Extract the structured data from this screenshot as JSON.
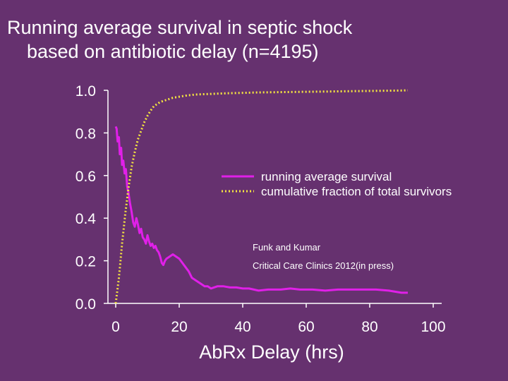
{
  "title_line1": "Running average survival in septic shock",
  "title_line2": "based on antibiotic delay (n=4195)",
  "colors": {
    "background": "#66316f",
    "survival": "#e020e8",
    "cumulative": "#f4e440",
    "axis": "#ffffff"
  },
  "chart_data": {
    "type": "line",
    "title": "Running average survival in septic shock based on antibiotic delay (n=4195)",
    "xlabel": "AbRx Delay (hrs)",
    "ylabel": "",
    "xlim": [
      0,
      100
    ],
    "ylim": [
      0,
      1.0
    ],
    "x_ticks": [
      "0",
      "20",
      "40",
      "60",
      "80",
      "100"
    ],
    "y_ticks": [
      "0.0",
      "0.2",
      "0.4",
      "0.6",
      "0.8",
      "1.0"
    ],
    "legend_position": "center-right",
    "grid": false,
    "annotation": [
      "Funk and Kumar",
      "Critical Care Clinics 2012(in press)"
    ],
    "series": [
      {
        "name": "running average survival",
        "style": "solid",
        "color": "#e020e8",
        "points": [
          [
            0.0,
            0.83
          ],
          [
            0.3,
            0.82
          ],
          [
            0.6,
            0.76
          ],
          [
            1.0,
            0.78
          ],
          [
            1.3,
            0.7
          ],
          [
            1.7,
            0.73
          ],
          [
            2.0,
            0.65
          ],
          [
            2.4,
            0.67
          ],
          [
            2.8,
            0.61
          ],
          [
            3.2,
            0.63
          ],
          [
            3.6,
            0.55
          ],
          [
            4.0,
            0.52
          ],
          [
            4.5,
            0.47
          ],
          [
            5.0,
            0.43
          ],
          [
            5.5,
            0.38
          ],
          [
            6.0,
            0.36
          ],
          [
            6.5,
            0.4
          ],
          [
            7.0,
            0.37
          ],
          [
            7.5,
            0.33
          ],
          [
            8.0,
            0.35
          ],
          [
            8.5,
            0.31
          ],
          [
            9.0,
            0.3
          ],
          [
            9.5,
            0.28
          ],
          [
            10.0,
            0.32
          ],
          [
            10.5,
            0.29
          ],
          [
            11.0,
            0.27
          ],
          [
            11.5,
            0.28
          ],
          [
            12.0,
            0.26
          ],
          [
            12.5,
            0.27
          ],
          [
            13.0,
            0.25
          ],
          [
            13.5,
            0.24
          ],
          [
            14.0,
            0.22
          ],
          [
            14.5,
            0.19
          ],
          [
            15.0,
            0.18
          ],
          [
            15.5,
            0.2
          ],
          [
            16.0,
            0.21
          ],
          [
            17.0,
            0.22
          ],
          [
            18.0,
            0.23
          ],
          [
            19.0,
            0.22
          ],
          [
            20.0,
            0.21
          ],
          [
            21.0,
            0.19
          ],
          [
            22.0,
            0.17
          ],
          [
            23.0,
            0.15
          ],
          [
            24.0,
            0.12
          ],
          [
            25.0,
            0.11
          ],
          [
            26.0,
            0.1
          ],
          [
            27.0,
            0.09
          ],
          [
            28.0,
            0.08
          ],
          [
            29.0,
            0.08
          ],
          [
            30.0,
            0.07
          ],
          [
            32.0,
            0.08
          ],
          [
            34.0,
            0.08
          ],
          [
            36.0,
            0.075
          ],
          [
            38.0,
            0.075
          ],
          [
            40.0,
            0.07
          ],
          [
            42.0,
            0.07
          ],
          [
            45.0,
            0.06
          ],
          [
            48.0,
            0.065
          ],
          [
            52.0,
            0.065
          ],
          [
            55.0,
            0.07
          ],
          [
            58.0,
            0.065
          ],
          [
            62.0,
            0.065
          ],
          [
            66.0,
            0.06
          ],
          [
            70.0,
            0.065
          ],
          [
            74.0,
            0.065
          ],
          [
            78.0,
            0.065
          ],
          [
            82.0,
            0.065
          ],
          [
            86.0,
            0.06
          ],
          [
            88.0,
            0.055
          ],
          [
            90.0,
            0.05
          ],
          [
            92.0,
            0.05
          ]
        ]
      },
      {
        "name": "cumulative fraction of total survivors",
        "style": "dotted",
        "color": "#f4e440",
        "points": [
          [
            0.0,
            0.0
          ],
          [
            0.5,
            0.06
          ],
          [
            1.0,
            0.12
          ],
          [
            1.5,
            0.2
          ],
          [
            2.0,
            0.28
          ],
          [
            2.5,
            0.35
          ],
          [
            3.0,
            0.42
          ],
          [
            3.5,
            0.48
          ],
          [
            4.0,
            0.54
          ],
          [
            4.5,
            0.59
          ],
          [
            5.0,
            0.64
          ],
          [
            6.0,
            0.71
          ],
          [
            7.0,
            0.77
          ],
          [
            8.0,
            0.81
          ],
          [
            9.0,
            0.85
          ],
          [
            10.0,
            0.88
          ],
          [
            11.0,
            0.905
          ],
          [
            12.0,
            0.925
          ],
          [
            14.0,
            0.945
          ],
          [
            16.0,
            0.955
          ],
          [
            18.0,
            0.965
          ],
          [
            20.0,
            0.97
          ],
          [
            22.0,
            0.975
          ],
          [
            25.0,
            0.98
          ],
          [
            30.0,
            0.983
          ],
          [
            35.0,
            0.986
          ],
          [
            40.0,
            0.988
          ],
          [
            45.0,
            0.99
          ],
          [
            50.0,
            0.991
          ],
          [
            55.0,
            0.992
          ],
          [
            60.0,
            0.993
          ],
          [
            65.0,
            0.994
          ],
          [
            70.0,
            0.995
          ],
          [
            75.0,
            0.996
          ],
          [
            80.0,
            0.997
          ],
          [
            85.0,
            0.998
          ],
          [
            90.0,
            0.999
          ],
          [
            92.0,
            1.0
          ]
        ]
      }
    ]
  }
}
